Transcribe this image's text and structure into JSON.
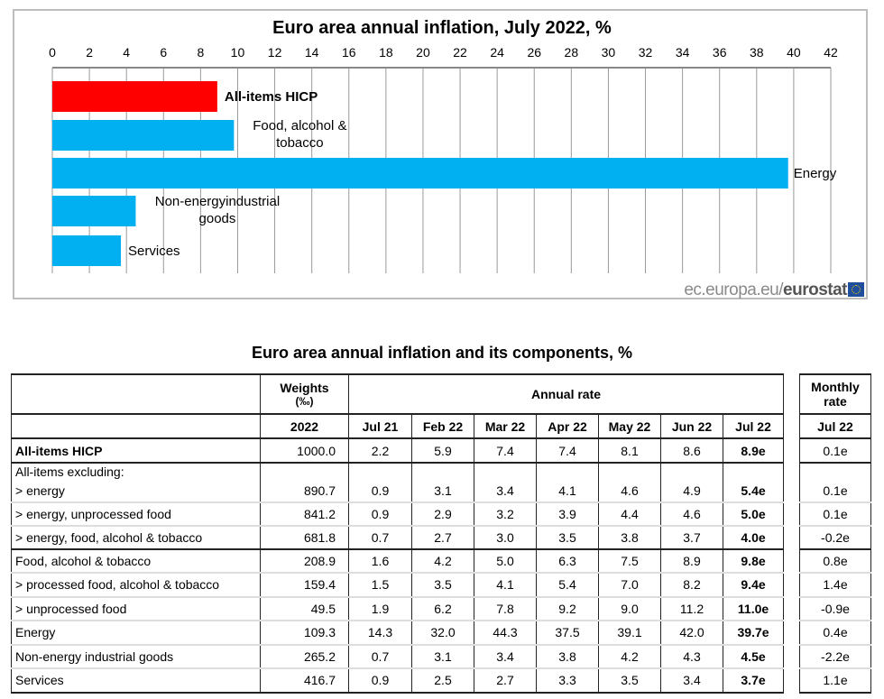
{
  "chart_data": {
    "type": "bar",
    "orientation": "horizontal",
    "title": "Euro area annual inflation, July 2022, %",
    "categories": [
      "All-items HICP",
      "Food, alcohol & tobacco",
      "Energy",
      "Non-energyindustrial goods",
      "Services"
    ],
    "values": [
      8.9,
      9.8,
      39.7,
      4.5,
      3.7
    ],
    "colors": [
      "#ff0000",
      "#00b0f0",
      "#00b0f0",
      "#00b0f0",
      "#00b0f0"
    ],
    "xlim": [
      0,
      42
    ],
    "xticks": [
      0,
      2,
      4,
      6,
      8,
      10,
      12,
      14,
      16,
      18,
      20,
      22,
      24,
      26,
      28,
      30,
      32,
      34,
      36,
      38,
      40,
      42
    ],
    "axis_position": "top",
    "grid": true,
    "source": {
      "prefix": "ec.europa.eu/",
      "brand": "eurostat"
    }
  },
  "table": {
    "title": "Euro area annual inflation and its components, %",
    "headers": {
      "weights": "Weights",
      "weights_unit": "(‰)",
      "annual": "Annual rate",
      "monthly": "Monthly",
      "monthly2": "rate",
      "year": "2022",
      "months": [
        "Jul 21",
        "Feb 22",
        "Mar 22",
        "Apr 22",
        "May 22",
        "Jun 22",
        "Jul 22"
      ],
      "monthly_month": "Jul 22"
    },
    "excluding_label": "All-items excluding:",
    "rows": [
      {
        "label": "All-items HICP",
        "weight": "1000.0",
        "values": [
          "2.2",
          "5.9",
          "7.4",
          "7.4",
          "8.1",
          "8.6",
          "8.9e"
        ],
        "monthly": "0.1e"
      },
      {
        "label": "> energy",
        "weight": "890.7",
        "values": [
          "0.9",
          "3.1",
          "3.4",
          "4.1",
          "4.6",
          "4.9",
          "5.4e"
        ],
        "monthly": "0.1e"
      },
      {
        "label": "> energy, unprocessed food",
        "weight": "841.2",
        "values": [
          "0.9",
          "2.9",
          "3.2",
          "3.9",
          "4.4",
          "4.6",
          "5.0e"
        ],
        "monthly": "0.1e"
      },
      {
        "label": "> energy, food, alcohol & tobacco",
        "weight": "681.8",
        "values": [
          "0.7",
          "2.7",
          "3.0",
          "3.5",
          "3.8",
          "3.7",
          "4.0e"
        ],
        "monthly": "-0.2e"
      },
      {
        "label": "Food, alcohol & tobacco",
        "weight": "208.9",
        "values": [
          "1.6",
          "4.2",
          "5.0",
          "6.3",
          "7.5",
          "8.9",
          "9.8e"
        ],
        "monthly": "0.8e"
      },
      {
        "label": "> processed food, alcohol & tobacco",
        "weight": "159.4",
        "values": [
          "1.5",
          "3.5",
          "4.1",
          "5.4",
          "7.0",
          "8.2",
          "9.4e"
        ],
        "monthly": "1.4e"
      },
      {
        "label": "> unprocessed food",
        "weight": "49.5",
        "values": [
          "1.9",
          "6.2",
          "7.8",
          "9.2",
          "9.0",
          "11.2",
          "11.0e"
        ],
        "monthly": "-0.9e"
      },
      {
        "label": "Energy",
        "weight": "109.3",
        "values": [
          "14.3",
          "32.0",
          "44.3",
          "37.5",
          "39.1",
          "42.0",
          "39.7e"
        ],
        "monthly": "0.4e"
      },
      {
        "label": "Non-energy industrial goods",
        "weight": "265.2",
        "values": [
          "0.7",
          "3.1",
          "3.4",
          "3.8",
          "4.2",
          "4.3",
          "4.5e"
        ],
        "monthly": "-2.2e"
      },
      {
        "label": "Services",
        "weight": "416.7",
        "values": [
          "0.9",
          "2.5",
          "2.7",
          "3.3",
          "3.5",
          "3.4",
          "3.7e"
        ],
        "monthly": "1.1e"
      }
    ]
  }
}
